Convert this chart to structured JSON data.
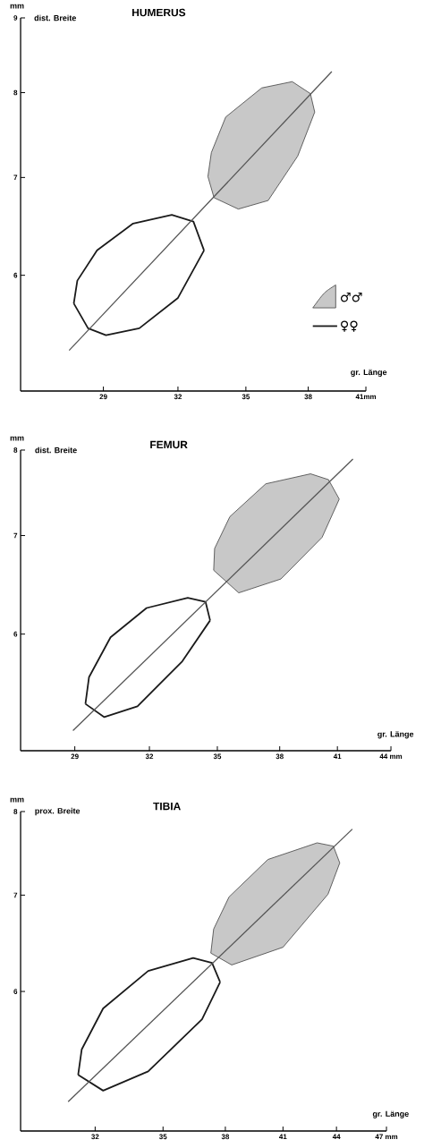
{
  "chart_data": [
    {
      "type": "line",
      "title": "HUMERUS",
      "ylabel": "dist. Breite",
      "xlabel": "gr. Länge",
      "annotations": [
        "mm"
      ],
      "log": "xy",
      "xlim": [
        26,
        41
      ],
      "ylim": [
        5,
        9
      ],
      "xticks": [
        29,
        32,
        35,
        38,
        {
          "value": 41,
          "label": "41mm"
        }
      ],
      "yticks": [
        6,
        7,
        8,
        9
      ],
      "legend": "bottom right",
      "series": [
        {
          "type": "area",
          "name": "♂♂",
          "color": "#c8c8c8",
          "x": [
            33.29,
            33.56,
            34.65,
            36.04,
            37.48,
            38.33,
            38.11,
            37.21,
            35.74,
            34.08,
            33.44
          ],
          "values": [
            7.01,
            6.78,
            6.66,
            6.75,
            7.24,
            7.76,
            7.99,
            8.14,
            8.06,
            7.7,
            7.28
          ]
        },
        {
          "name": "♀♀",
          "color": "#1a1a1a",
          "x": [
            27.89,
            28.42,
            29.1,
            30.41,
            32.0,
            33.12
          ],
          "values": [
            5.74,
            5.52,
            5.46,
            5.52,
            5.79,
            6.24
          ]
        },
        {
          "color": "#1a1a1a",
          "x": [
            27.89,
            28.02,
            28.76,
            30.16,
            31.74,
            32.66,
            33.12
          ],
          "values": [
            5.74,
            5.95,
            6.24,
            6.51,
            6.6,
            6.53,
            6.24
          ]
        },
        {
          "color": "#555555",
          "x": [
            27.72,
            39.2
          ],
          "values": [
            5.33,
            8.27
          ]
        }
      ]
    },
    {
      "type": "line",
      "title": "FEMUR",
      "ylabel": "dist. Breite",
      "xlabel": "gr. Länge",
      "annotations": [
        "mm"
      ],
      "log": "xy",
      "xlim": [
        27,
        44
      ],
      "ylim": [
        5,
        8
      ],
      "xticks": [
        29,
        32,
        35,
        38,
        41,
        {
          "value": 44,
          "label": "44 mm"
        }
      ],
      "yticks": [
        6,
        7,
        8
      ],
      "series": [
        {
          "type": "area",
          "color": "#c8c8c8",
          "x": [
            34.83,
            36.0,
            38.06,
            40.18,
            41.1,
            40.52,
            39.58,
            37.31,
            35.58,
            34.87
          ],
          "values": [
            6.63,
            6.4,
            6.54,
            6.98,
            7.41,
            7.64,
            7.71,
            7.59,
            7.21,
            6.86
          ]
        },
        {
          "color": "#1a1a1a",
          "x": [
            29.41,
            30.15,
            31.5,
            33.42,
            34.67
          ],
          "values": [
            5.38,
            5.27,
            5.36,
            5.75,
            6.13
          ]
        },
        {
          "color": "#1a1a1a",
          "x": [
            29.41,
            29.55,
            30.4,
            31.88,
            33.66,
            34.46,
            34.67
          ],
          "values": [
            5.38,
            5.61,
            5.97,
            6.25,
            6.35,
            6.31,
            6.13
          ]
        },
        {
          "color": "#555555",
          "x": [
            28.93,
            41.85
          ],
          "values": [
            5.16,
            7.89
          ]
        }
      ]
    },
    {
      "type": "line",
      "title": "TIBIA",
      "ylabel": "prox. Breite",
      "xlabel": "gr. Länge",
      "annotations": [
        "mm"
      ],
      "log": "xy",
      "xlim": [
        29,
        47
      ],
      "ylim": [
        4.8,
        8
      ],
      "xticks": [
        32,
        35,
        38,
        41,
        44,
        {
          "value": 47,
          "label": "47 mm"
        }
      ],
      "yticks": [
        6,
        7,
        8
      ],
      "series": [
        {
          "type": "area",
          "color": "#c8c8c8",
          "x": [
            37.28,
            38.32,
            41.0,
            43.51,
            44.19,
            43.82,
            42.89,
            40.19,
            38.19,
            37.42
          ],
          "values": [
            6.38,
            6.26,
            6.44,
            7.01,
            7.37,
            7.57,
            7.61,
            7.41,
            6.98,
            6.63
          ]
        },
        {
          "color": "#1a1a1a",
          "x": [
            31.29,
            32.34,
            34.32,
            36.85,
            37.74
          ],
          "values": [
            5.25,
            5.12,
            5.28,
            5.74,
            6.09
          ]
        },
        {
          "color": "#1a1a1a",
          "x": [
            31.29,
            31.44,
            32.34,
            34.32,
            36.42,
            37.34,
            37.74
          ],
          "values": [
            5.25,
            5.47,
            5.84,
            6.2,
            6.33,
            6.28,
            6.09
          ]
        },
        {
          "color": "#555555",
          "x": [
            30.88,
            44.93
          ],
          "values": [
            5.03,
            7.78
          ]
        }
      ]
    }
  ]
}
